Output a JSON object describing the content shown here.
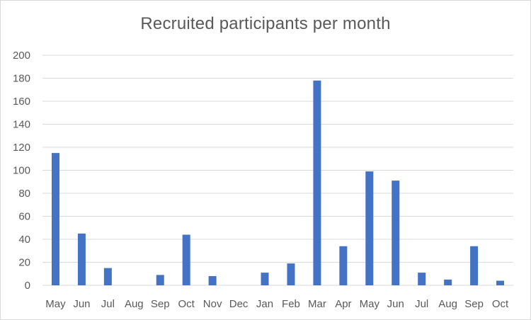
{
  "chart_data": {
    "type": "bar",
    "title": "Recruited participants per month",
    "xlabel": "",
    "ylabel": "",
    "categories": [
      "May",
      "Jun",
      "Jul",
      "Aug",
      "Sep",
      "Oct",
      "Nov",
      "Dec",
      "Jan",
      "Feb",
      "Mar",
      "Apr",
      "May",
      "Jun",
      "Jul",
      "Aug",
      "Sep",
      "Oct"
    ],
    "values": [
      115,
      45,
      15,
      0,
      9,
      44,
      8,
      0,
      11,
      19,
      178,
      34,
      99,
      91,
      11,
      5,
      34,
      4
    ],
    "ylim": [
      0,
      200
    ],
    "yticks": [
      "0",
      "20",
      "40",
      "60",
      "80",
      "100",
      "120",
      "140",
      "160",
      "180",
      "200"
    ],
    "grid": true,
    "legend": "none",
    "bar_color": "#4472c4",
    "grid_color": "#d9d9d9"
  }
}
